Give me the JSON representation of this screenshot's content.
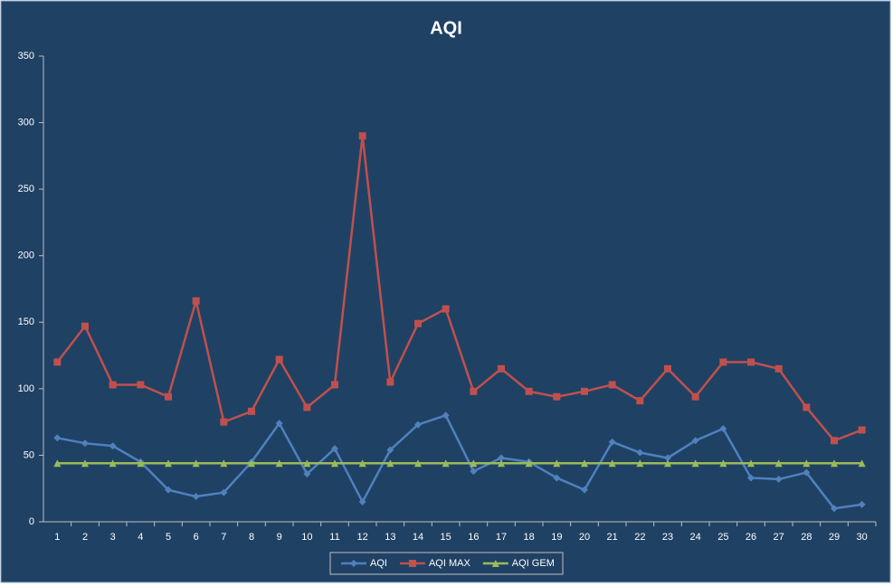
{
  "chart_data": {
    "type": "line",
    "title": "AQI",
    "categories": [
      "1",
      "2",
      "3",
      "4",
      "5",
      "6",
      "7",
      "8",
      "9",
      "10",
      "11",
      "12",
      "13",
      "14",
      "15",
      "16",
      "17",
      "18",
      "19",
      "20",
      "21",
      "22",
      "23",
      "24",
      "25",
      "26",
      "27",
      "28",
      "29",
      "30"
    ],
    "series": [
      {
        "name": "AQI",
        "color": "#4f81bd",
        "marker": "diamond",
        "values": [
          63,
          59,
          57,
          45,
          24,
          19,
          22,
          45,
          74,
          36,
          55,
          15,
          54,
          73,
          80,
          38,
          48,
          45,
          33,
          24,
          60,
          52,
          48,
          61,
          70,
          33,
          32,
          37,
          10,
          13
        ]
      },
      {
        "name": "AQI MAX",
        "color": "#c0504d",
        "marker": "square",
        "values": [
          120,
          147,
          103,
          103,
          94,
          166,
          75,
          83,
          122,
          86,
          103,
          290,
          105,
          149,
          160,
          98,
          115,
          98,
          94,
          98,
          103,
          91,
          115,
          94,
          120,
          120,
          115,
          86,
          61,
          69
        ]
      },
      {
        "name": "AQI GEM",
        "color": "#9bbb59",
        "marker": "triangle",
        "values": [
          44,
          44,
          44,
          44,
          44,
          44,
          44,
          44,
          44,
          44,
          44,
          44,
          44,
          44,
          44,
          44,
          44,
          44,
          44,
          44,
          44,
          44,
          44,
          44,
          44,
          44,
          44,
          44,
          44,
          44
        ]
      }
    ],
    "ylim": [
      0,
      350
    ],
    "yticks": [
      0,
      50,
      100,
      150,
      200,
      250,
      300,
      350
    ],
    "grid": false,
    "legend": "bottom"
  }
}
